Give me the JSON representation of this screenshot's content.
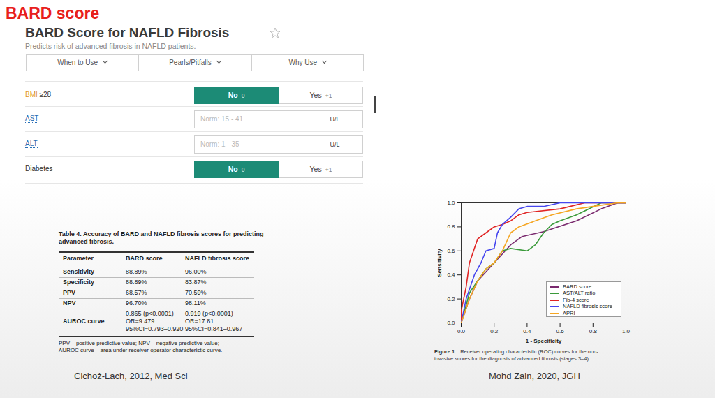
{
  "slide_title": "BARD score",
  "calculator": {
    "title": "BARD Score for NAFLD Fibrosis",
    "subtitle": "Predicts risk of advanced fibrosis in NAFLD patients.",
    "tabs": [
      "When to Use",
      "Pearls/Pitfalls",
      "Why Use"
    ],
    "rows": [
      {
        "type": "toggle",
        "label": "BMI",
        "label_extra": "≥28",
        "options": [
          {
            "label": "No",
            "points": "0",
            "selected": true
          },
          {
            "label": "Yes",
            "points": "+1",
            "selected": false
          }
        ]
      },
      {
        "type": "input",
        "label": "AST",
        "placeholder": "Norm: 15 - 41",
        "unit": "U/L"
      },
      {
        "type": "input",
        "label": "ALT",
        "placeholder": "Norm: 1 - 35",
        "unit": "U/L"
      },
      {
        "type": "toggle",
        "label": "Diabetes",
        "label_extra": "",
        "options": [
          {
            "label": "No",
            "points": "0",
            "selected": true
          },
          {
            "label": "Yes",
            "points": "+1",
            "selected": false
          }
        ]
      }
    ]
  },
  "table": {
    "caption": [
      "Table 4. Accuracy of BARD and NAFLD fibrosis scores for predicting",
      "advanced fibrosis."
    ],
    "header": [
      "Parameter",
      "BARD score",
      "NAFLD fibrosis score"
    ],
    "rows": [
      [
        [
          "Sensitivity"
        ],
        [
          "88.89%"
        ],
        [
          "96.00%"
        ]
      ],
      [
        [
          "Specificity"
        ],
        [
          "88.89%"
        ],
        [
          "83.87%"
        ]
      ],
      [
        [
          "PPV"
        ],
        [
          "68.57%"
        ],
        [
          "70.59%"
        ]
      ],
      [
        [
          "NPV"
        ],
        [
          "96.70%"
        ],
        [
          "98.11%"
        ]
      ],
      [
        [
          "AUROC curve"
        ],
        [
          "0.865 (p<0.0001)",
          "OR=9.479",
          "95%CI=0.793–0.920"
        ],
        [
          "0.919 (p<0.0001)",
          "OR=17.81",
          "95%CI=0.841–0.967"
        ]
      ]
    ],
    "footnote": [
      "PPV – positive predictive value; NPV – negative predictive value;",
      "AUROC curve – area under receiver operator characteristic curve."
    ]
  },
  "left_citation": "Cichoż-Lach, 2012, Med Sci",
  "chart_data": {
    "type": "line",
    "xlabel": "1 - Specificity",
    "ylabel": "Sensitivity",
    "xlim": [
      0,
      1
    ],
    "ylim": [
      0,
      1
    ],
    "xticks": [
      {
        "value": 0,
        "label": "0.0"
      },
      0.2,
      0.4,
      0.6,
      0.8,
      {
        "value": 1,
        "label": "1.0"
      }
    ],
    "yticks": [
      {
        "value": 0,
        "label": "0.0"
      },
      0.2,
      0.4,
      0.6,
      0.8,
      {
        "value": 1,
        "label": "1.0"
      }
    ],
    "grid": false,
    "legend": "bottom-right",
    "series": [
      {
        "name": "BARD score",
        "color": "#7a2a6e",
        "x": [
          0,
          0.05,
          0.1,
          0.2,
          0.3,
          0.37,
          0.5,
          0.7,
          0.85,
          0.95,
          1
        ],
        "values": [
          0,
          0.2,
          0.35,
          0.5,
          0.65,
          0.72,
          0.76,
          0.85,
          0.95,
          1,
          1
        ]
      },
      {
        "name": "AST/ALT ratio",
        "color": "#3a9a3a",
        "x": [
          0,
          0.05,
          0.1,
          0.15,
          0.2,
          0.25,
          0.3,
          0.4,
          0.45,
          0.5,
          0.55,
          0.6,
          0.7,
          0.85,
          1
        ],
        "values": [
          0,
          0.25,
          0.35,
          0.45,
          0.5,
          0.6,
          0.62,
          0.6,
          0.65,
          0.75,
          0.82,
          0.85,
          0.9,
          1,
          1
        ]
      },
      {
        "name": "Fib-4 score",
        "color": "#e02424",
        "x": [
          0,
          0,
          0.03,
          0.05,
          0.08,
          0.1,
          0.15,
          0.2,
          0.25,
          0.3,
          0.35,
          0.4,
          0.6,
          0.75,
          1
        ],
        "values": [
          0,
          0.1,
          0.3,
          0.5,
          0.62,
          0.7,
          0.75,
          0.8,
          0.82,
          0.85,
          0.9,
          0.92,
          0.95,
          1,
          1
        ]
      },
      {
        "name": "NAFLD fibrosis score",
        "color": "#4646ee",
        "x": [
          0,
          0.03,
          0.08,
          0.12,
          0.15,
          0.2,
          0.22,
          0.25,
          0.3,
          0.35,
          0.4,
          0.5,
          0.6,
          1
        ],
        "values": [
          0,
          0.2,
          0.4,
          0.5,
          0.6,
          0.62,
          0.75,
          0.82,
          0.88,
          0.95,
          0.97,
          0.97,
          1,
          1
        ]
      },
      {
        "name": "APRI",
        "color": "#f5a623",
        "x": [
          0,
          0.05,
          0.1,
          0.15,
          0.2,
          0.25,
          0.3,
          0.35,
          0.45,
          0.55,
          0.7,
          0.8,
          0.95,
          1
        ],
        "values": [
          0,
          0.2,
          0.35,
          0.45,
          0.5,
          0.6,
          0.75,
          0.8,
          0.85,
          0.9,
          0.95,
          0.97,
          1,
          1
        ]
      }
    ]
  },
  "figure_caption": {
    "label": "Figure 1",
    "lines": [
      "Receiver operating characteristic (ROC) curves for the non-",
      "invasive scores for the diagnosis of advanced fibrosis (stages 3–4)."
    ]
  },
  "right_citation": "Mohd Zain, 2020, JGH"
}
